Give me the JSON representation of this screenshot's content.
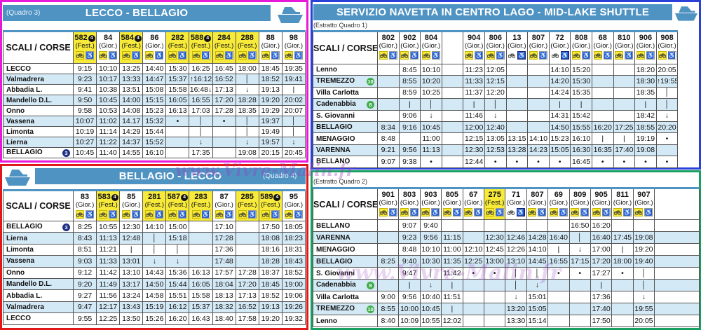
{
  "watermark": "www.Vivre-Malin.fr",
  "colors": {
    "title_bar": "#4f93c3",
    "festive": "#f7ea3a",
    "row_alt": "#d4e9f6"
  },
  "corner_label": "SCALI / CORSE",
  "tables": [
    {
      "title": "LECCO - BELLAGIO",
      "quadro": "(Quadro 3)",
      "columns": [
        {
          "num": "582",
          "type": "(Fest.)",
          "fest": true,
          "badge": "4"
        },
        {
          "num": "84",
          "type": "(Gior.)"
        },
        {
          "num": "584",
          "type": "(Fest.)",
          "fest": true,
          "badge": "4"
        },
        {
          "num": "86",
          "type": "(Gior.)"
        },
        {
          "num": "282",
          "type": "(Fest.)",
          "fest": true
        },
        {
          "num": "588",
          "type": "(Fest.)",
          "fest": true,
          "badge": "4"
        },
        {
          "num": "284",
          "type": "(Fest.)",
          "fest": true
        },
        {
          "num": "288",
          "type": "(Fest.)",
          "fest": true
        },
        {
          "num": "88",
          "type": "(Gior.)"
        },
        {
          "num": "98",
          "type": "(Gior.)"
        }
      ],
      "rows": [
        {
          "station": "LECCO",
          "times": [
            "9:15",
            "10:10",
            "13:25",
            "14:40",
            "15:30",
            "16:25",
            "16:45",
            "18:00",
            "18:45",
            "19:35"
          ]
        },
        {
          "station": "Valmadrera",
          "times": [
            "9:23",
            "10:17",
            "13:33",
            "14:47",
            "15:37",
            "↑16:12",
            "16:52",
            "│",
            "18:52",
            "19:41"
          ]
        },
        {
          "station": "Abbadia L.",
          "times": [
            "9:41",
            "10:38",
            "13:51",
            "15:08",
            "15:58",
            "16:48↓",
            "17:13",
            "↓",
            "19:13",
            "|"
          ]
        },
        {
          "station": "Mandello D.L.",
          "times": [
            "9:50",
            "10:45",
            "14:00",
            "15:15",
            "16:05",
            "16:55",
            "17:20",
            "18:28",
            "19:20",
            "20:02"
          ]
        },
        {
          "station": "Onno",
          "times": [
            "9:58",
            "10:53",
            "14:08",
            "15:23",
            "16:13",
            "17:03",
            "17:28",
            "18:35",
            "19:29",
            "20:07"
          ]
        },
        {
          "station": "Vassena",
          "times": [
            "10:07",
            "11:02",
            "14.17",
            "15:32",
            "•",
            "│",
            "•",
            "│",
            "19:37",
            "│"
          ]
        },
        {
          "station": "Limonta",
          "times": [
            "10:19",
            "11:14",
            "14:29",
            "15:44",
            "",
            "│",
            "",
            "│",
            "19:49",
            "│"
          ]
        },
        {
          "station": "Lierna",
          "times": [
            "10:27",
            "11:22",
            "14:37",
            "15:52",
            "",
            "↓",
            "",
            "↓",
            "19:57",
            "↓"
          ]
        },
        {
          "station": "BELLAGIO",
          "badge": "3",
          "badge_color": "blue",
          "times": [
            "10:45",
            "11:40",
            "14:55",
            "16:10",
            "",
            "17:35",
            "",
            "19:08",
            "20:15",
            "20:45"
          ]
        }
      ]
    },
    {
      "title": "BELLAGIO - LECCO",
      "quadro": "(Quadro 4)",
      "columns": [
        {
          "num": "83",
          "type": "(Gior.)"
        },
        {
          "num": "583",
          "type": "(Fest.)",
          "fest": true,
          "badge": "4"
        },
        {
          "num": "85",
          "type": "(Gior.)"
        },
        {
          "num": "281",
          "type": "(Fest.)",
          "fest": true
        },
        {
          "num": "587",
          "type": "(Fest.)",
          "fest": true,
          "badge": "4"
        },
        {
          "num": "283",
          "type": "(Fest.)",
          "fest": true
        },
        {
          "num": "87",
          "type": "(Gior.)"
        },
        {
          "num": "285",
          "type": "(Fest.)",
          "fest": true
        },
        {
          "num": "589",
          "type": "(Fest.)",
          "fest": true,
          "badge": "4"
        },
        {
          "num": "95",
          "type": "(Gior.)"
        }
      ],
      "rows": [
        {
          "station": "BELLAGIO",
          "badge": "3",
          "badge_color": "blue",
          "times": [
            "8:25",
            "10:55",
            "12:30",
            "14:10",
            "15:00",
            "",
            "17:10",
            "",
            "17:50",
            "18:05"
          ]
        },
        {
          "station": "Lierna",
          "times": [
            "8:43",
            "11:13",
            "12:48",
            "│",
            "15:18",
            "",
            "17:28",
            "",
            "18:08",
            "18:23"
          ]
        },
        {
          "station": "Limonta",
          "times": [
            "8:51",
            "11:21",
            "|",
            "│",
            "│",
            "",
            "17:36",
            "",
            "18:16",
            "18:31"
          ]
        },
        {
          "station": "Vassena",
          "times": [
            "9:03",
            "11:33",
            "13:01",
            "↓",
            "↓",
            "",
            "17:48",
            "",
            "18:28",
            "18:43"
          ]
        },
        {
          "station": "Onno",
          "times": [
            "9:12",
            "11:42",
            "13:10",
            "14:43",
            "15:36",
            "16:13",
            "17:57",
            "17:28",
            "18:37",
            "18:52"
          ]
        },
        {
          "station": "Mandello D.L.",
          "times": [
            "9:20",
            "11:49",
            "13:17",
            "14:50",
            "15:44",
            "16:05",
            "18:04",
            "17:20",
            "18:45",
            "19:00"
          ]
        },
        {
          "station": "Abbadia L.",
          "times": [
            "9:27",
            "11:56",
            "13:24",
            "14:58",
            "15:51",
            "15:58",
            "18:13",
            "17:13",
            "18:52",
            "19:06"
          ]
        },
        {
          "station": "Valmadrera",
          "times": [
            "9:47",
            "12:17",
            "13:43",
            "15:19",
            "16:12",
            "15:37",
            "18:32",
            "16:52",
            "19:13",
            "19:26"
          ]
        },
        {
          "station": "LECCO",
          "times": [
            "9:55",
            "12:25",
            "13:50",
            "15:26",
            "16:20",
            "16:43",
            "18:40",
            "17:58",
            "19:20",
            "19:32"
          ]
        }
      ]
    },
    {
      "title": "SERVIZIO NAVETTA IN CENTRO LAGO  -  MID-LAKE SHUTTLE",
      "quadro": "(Estratto Quadro 1)",
      "columns": [
        {
          "num": "802",
          "type": "(Gior.)"
        },
        {
          "num": "902",
          "type": "(Gior.)"
        },
        {
          "num": "804",
          "type": "(Gior.)"
        },
        {
          "num": "",
          "type": "",
          "empty": true
        },
        {
          "num": "904",
          "type": "(Gior.)"
        },
        {
          "num": "806",
          "type": "(Gior.)"
        },
        {
          "num": "13",
          "type": "(Gior.)",
          "wheel_dark": true
        },
        {
          "num": "807",
          "type": "(Gior.)"
        },
        {
          "num": "72",
          "type": "(Gior.)",
          "wheel_dark": true
        },
        {
          "num": "808",
          "type": "(Gior.)"
        },
        {
          "num": "68",
          "type": "(Gior.)"
        },
        {
          "num": "810",
          "type": "(Gior.)"
        },
        {
          "num": "906",
          "type": "(Gior.)"
        },
        {
          "num": "908",
          "type": "(Gior.)"
        }
      ],
      "rows": [
        {
          "station": "Lenno",
          "times": [
            "",
            "8:45",
            "10:10",
            "",
            "11:23",
            "12:05",
            "",
            "",
            "14:10",
            "15:20",
            "",
            "",
            "18:20",
            "20:05"
          ]
        },
        {
          "station": "TREMEZZO",
          "badge": "10",
          "badge_color": "green",
          "times": [
            "",
            "8:55",
            "10:20",
            "",
            "11:33",
            "12:15",
            "",
            "",
            "14:20",
            "15:30",
            "",
            "",
            "18:30",
            "↑19:55"
          ]
        },
        {
          "station": "Villa Carlotta",
          "times": [
            "",
            "8:59",
            "10:25",
            "",
            "11:37",
            "12:20",
            "",
            "",
            "14:24",
            "15:35",
            "",
            "",
            "18:35",
            "│"
          ]
        },
        {
          "station": "Cadenabbia",
          "badge": "8",
          "badge_color": "green",
          "times": [
            "",
            "|",
            "│",
            "",
            "|",
            "│",
            "",
            "",
            "|",
            "|",
            "",
            "",
            "|",
            "│"
          ]
        },
        {
          "station": "S. Giovanni",
          "times": [
            "",
            "9:06",
            "↓",
            "",
            "11:46",
            "↓",
            "",
            "",
            "14:31",
            "15:42",
            "",
            "",
            "18:42",
            "↓"
          ]
        },
        {
          "station": "BELLAGIO",
          "times": [
            "8:34",
            "9:16",
            "10:45",
            "",
            "12:00",
            "12:40",
            "",
            "",
            "14:50",
            "15:55",
            "16:20",
            "17:25",
            "18:55",
            "20:20"
          ]
        },
        {
          "station": "MENAGGIO",
          "times": [
            "8:48",
            "",
            "11:00",
            "",
            "12:15",
            "13:05",
            "13:15",
            "14:10",
            "15:23",
            "16:10",
            "|",
            "|",
            "19:19",
            "•"
          ]
        },
        {
          "station": "VARENNA",
          "times": [
            "9:21",
            "9:56",
            "11:13",
            "",
            "12:30",
            "12:53",
            "13:28",
            "14:23",
            "15:05",
            "16:30",
            "16:35",
            "17:40",
            "19:08",
            ""
          ]
        },
        {
          "station": "BELLANO",
          "times": [
            "9:07",
            "9:38",
            "•",
            "",
            "12:44",
            "•",
            "•",
            "•",
            "•",
            "16:45",
            "•",
            "•",
            "•",
            "•"
          ]
        }
      ]
    },
    {
      "title": "",
      "quadro": "(Estratto Quadro 2)",
      "columns": [
        {
          "num": "901",
          "type": "(Gior.)"
        },
        {
          "num": "803",
          "type": "(Gior.)"
        },
        {
          "num": "903",
          "type": "(Gior.)"
        },
        {
          "num": "805",
          "type": "(Gior.)"
        },
        {
          "num": "67",
          "type": "(Gior.)"
        },
        {
          "num": "275",
          "type": "(Fest.)",
          "fest": true
        },
        {
          "num": "71",
          "type": "(Gior.)",
          "wheel_dark": true
        },
        {
          "num": "807",
          "type": "(Gior.)"
        },
        {
          "num": "69",
          "type": "(Gior.)"
        },
        {
          "num": "809",
          "type": "(Gior.)"
        },
        {
          "num": "905",
          "type": "(Gior.)"
        },
        {
          "num": "811",
          "type": "(Gior.)"
        },
        {
          "num": "907",
          "type": "(Gior.)"
        }
      ],
      "rows": [
        {
          "station": "BELLANO",
          "times": [
            "",
            "9:07",
            "9:40",
            "",
            "",
            "",
            "",
            "",
            "",
            "16:50",
            "16:20",
            "",
            ""
          ]
        },
        {
          "station": "VARENNA",
          "times": [
            "",
            "9:23",
            "9:56",
            "11:15",
            "",
            "12:30",
            "12:46",
            "14:28",
            "16:40",
            "│",
            "16:40",
            "17:45",
            "19:08"
          ]
        },
        {
          "station": "MENAGGIO",
          "times": [
            "",
            "8:48",
            "10:10",
            "11:00",
            "12:10",
            "12:45",
            "12:26",
            "14:10",
            "|",
            "↓",
            "17:00",
            "|",
            "19:20"
          ]
        },
        {
          "station": "BELLAGIO",
          "times": [
            "8:25",
            "9:40",
            "10:30",
            "11:35",
            "12:25",
            "13:00",
            "13:10",
            "14:45",
            "16:55",
            "17:15",
            "17:20",
            "18:00",
            "19:40"
          ]
        },
        {
          "station": "S. Giovanni",
          "times": [
            "",
            "9:47",
            "│",
            "11:42",
            "•",
            "•",
            "│",
            "│",
            "•",
            "•",
            "17:27",
            "•",
            "│"
          ]
        },
        {
          "station": "Cadenabbia",
          "badge": "8",
          "badge_color": "green",
          "times": [
            "",
            "|",
            "↓",
            "|",
            "",
            "",
            "│",
            "↓",
            "",
            "",
            "|",
            "",
            "│"
          ]
        },
        {
          "station": "Villa Carlotta",
          "times": [
            "9:00",
            "9:56",
            "10:40",
            "11:51",
            "",
            "",
            "↓",
            "15:01",
            "",
            "",
            "17:36",
            "",
            "↓"
          ]
        },
        {
          "station": "TREMEZZO",
          "badge": "10",
          "badge_color": "green",
          "times": [
            "8:55",
            "10:00",
            "10:45",
            "|",
            "",
            "",
            "13:20",
            "15:05",
            "",
            "",
            "17:40",
            "",
            "19:55"
          ]
        },
        {
          "station": "Lenno",
          "times": [
            "8:40",
            "10:09",
            "10:55",
            "12:02",
            "",
            "",
            "13:30",
            "15:14",
            "",
            "",
            "17:50",
            "",
            "20:05"
          ]
        }
      ]
    }
  ]
}
